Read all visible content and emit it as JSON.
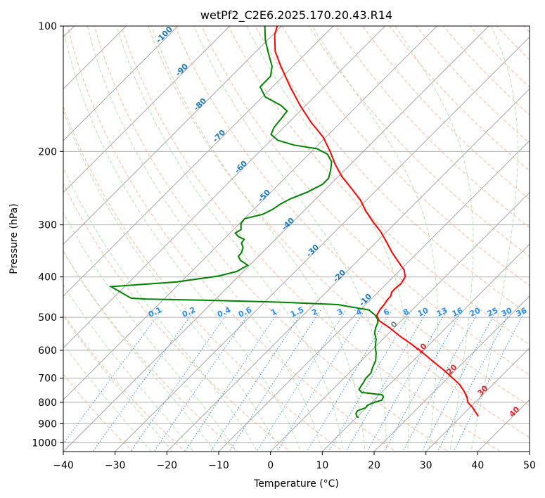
{
  "chart_data": {
    "type": "line",
    "title": "wetPf2_C2E6.2025.170.20.43.R14",
    "xlabel": "Temperature (°C)",
    "ylabel": "Pressure (hPa)",
    "xlim": [
      -40,
      50
    ],
    "ylim": [
      1050,
      100
    ],
    "y_scale": "log",
    "grid": true,
    "x_ticks": [
      "−40",
      "−30",
      "−20",
      "−10",
      "0",
      "10",
      "20",
      "30",
      "40",
      "50"
    ],
    "x_tick_values": [
      -40,
      -30,
      -20,
      -10,
      0,
      10,
      20,
      30,
      40,
      50
    ],
    "y_ticks": [
      "100",
      "200",
      "300",
      "400",
      "500",
      "600",
      "700",
      "800",
      "900",
      "1000"
    ],
    "y_tick_values": [
      100,
      200,
      300,
      400,
      500,
      600,
      700,
      800,
      900,
      1000
    ],
    "skew_isotherm_labels": [
      "-100",
      "-90",
      "-80",
      "-70",
      "-60",
      "-50",
      "-40",
      "-30",
      "-20",
      "-10",
      "0",
      "10",
      "20",
      "30",
      "40"
    ],
    "skew_isotherm_values": [
      -100,
      -90,
      -80,
      -70,
      -60,
      -50,
      -40,
      -30,
      -20,
      -10,
      0,
      10,
      20,
      30,
      40
    ],
    "mixing_ratio_labels": [
      "0.1",
      "0.2",
      "0.4",
      "0.6",
      "1",
      "1.5",
      "2",
      "3",
      "4",
      "6",
      "8",
      "10",
      "13",
      "16",
      "20",
      "25",
      "30",
      "36"
    ],
    "mixing_ratio_values": [
      0.1,
      0.2,
      0.4,
      0.6,
      1,
      1.5,
      2,
      3,
      4,
      6,
      8,
      10,
      13,
      16,
      20,
      25,
      30,
      36
    ],
    "series": [
      {
        "color": "#ff0000",
        "points": [
          [
            1.3,
            100
          ],
          [
            0.8,
            105
          ],
          [
            0.9,
            115
          ],
          [
            2,
            125
          ],
          [
            3.8,
            140
          ],
          [
            5.7,
            155
          ],
          [
            7.8,
            170
          ],
          [
            10.2,
            185
          ],
          [
            11.5,
            200
          ],
          [
            12.5,
            215
          ],
          [
            13.8,
            230
          ],
          [
            15.6,
            245
          ],
          [
            17.4,
            262
          ],
          [
            18.4,
            278
          ],
          [
            19.8,
            295
          ],
          [
            21.3,
            312
          ],
          [
            22.4,
            330
          ],
          [
            23.5,
            350
          ],
          [
            24.8,
            370
          ],
          [
            25.8,
            385
          ],
          [
            26,
            400
          ],
          [
            25.2,
            415
          ],
          [
            24.2,
            425
          ],
          [
            23.4,
            435
          ],
          [
            23.2,
            445
          ],
          [
            22.5,
            455
          ],
          [
            22,
            465
          ],
          [
            21.1,
            480
          ],
          [
            20.5,
            495
          ],
          [
            21,
            510
          ],
          [
            23,
            530
          ],
          [
            25,
            555
          ],
          [
            27.2,
            580
          ],
          [
            29.5,
            610
          ],
          [
            31.5,
            640
          ],
          [
            33.5,
            670
          ],
          [
            35.2,
            700
          ],
          [
            36.5,
            725
          ],
          [
            37.3,
            750
          ],
          [
            37.9,
            775
          ],
          [
            38.1,
            800
          ],
          [
            38.9,
            820
          ],
          [
            39.6,
            845
          ],
          [
            40.1,
            865
          ]
        ]
      },
      {
        "color": "#008000",
        "points": [
          [
            -1.1,
            100
          ],
          [
            -1,
            108
          ],
          [
            -0.5,
            115
          ],
          [
            0.3,
            125
          ],
          [
            0,
            132
          ],
          [
            -2,
            140
          ],
          [
            -1,
            148
          ],
          [
            2,
            155
          ],
          [
            3.2,
            160
          ],
          [
            2.2,
            166
          ],
          [
            0.7,
            175
          ],
          [
            0.1,
            182
          ],
          [
            1.4,
            188
          ],
          [
            4.5,
            193
          ],
          [
            9,
            197
          ],
          [
            11,
            203
          ],
          [
            11.8,
            212
          ],
          [
            11.6,
            222
          ],
          [
            11.2,
            232
          ],
          [
            10,
            240
          ],
          [
            7.2,
            250
          ],
          [
            3.8,
            260
          ],
          [
            1.8,
            268
          ],
          [
            0.5,
            275
          ],
          [
            -1.5,
            283
          ],
          [
            -5,
            290
          ],
          [
            -5.7,
            298
          ],
          [
            -5.7,
            308
          ],
          [
            -6.8,
            314
          ],
          [
            -6.2,
            320
          ],
          [
            -5.1,
            325
          ],
          [
            -5.6,
            332
          ],
          [
            -5.3,
            340
          ],
          [
            -5.6,
            350
          ],
          [
            -6.2,
            357
          ],
          [
            -5.8,
            365
          ],
          [
            -4.4,
            375
          ],
          [
            -6.5,
            388
          ],
          [
            -10,
            398
          ],
          [
            -18,
            411
          ],
          [
            -30.8,
            422
          ],
          [
            -28.8,
            436
          ],
          [
            -26.9,
            450
          ],
          [
            -24,
            452
          ],
          [
            -13,
            455
          ],
          [
            2,
            460
          ],
          [
            13,
            466
          ],
          [
            15.5,
            472
          ],
          [
            19,
            480
          ],
          [
            19.5,
            486
          ],
          [
            20.2,
            494
          ],
          [
            20.7,
            506
          ],
          [
            20.7,
            515
          ],
          [
            20.3,
            530
          ],
          [
            20.1,
            545
          ],
          [
            20.4,
            565
          ],
          [
            20.2,
            590
          ],
          [
            20.4,
            610
          ],
          [
            20.3,
            635
          ],
          [
            19.7,
            660
          ],
          [
            19.4,
            680
          ],
          [
            18.4,
            700
          ],
          [
            18,
            715
          ],
          [
            17.5,
            730
          ],
          [
            17.1,
            745
          ],
          [
            17.6,
            757
          ],
          [
            19.5,
            762
          ],
          [
            21.5,
            767
          ],
          [
            21.8,
            775
          ],
          [
            21.5,
            790
          ],
          [
            20.1,
            800
          ],
          [
            18.7,
            813
          ],
          [
            18.4,
            824
          ],
          [
            16.8,
            838
          ],
          [
            16.5,
            850
          ],
          [
            16.6,
            862
          ],
          [
            16.7,
            866
          ],
          [
            17,
            870
          ]
        ]
      }
    ]
  }
}
